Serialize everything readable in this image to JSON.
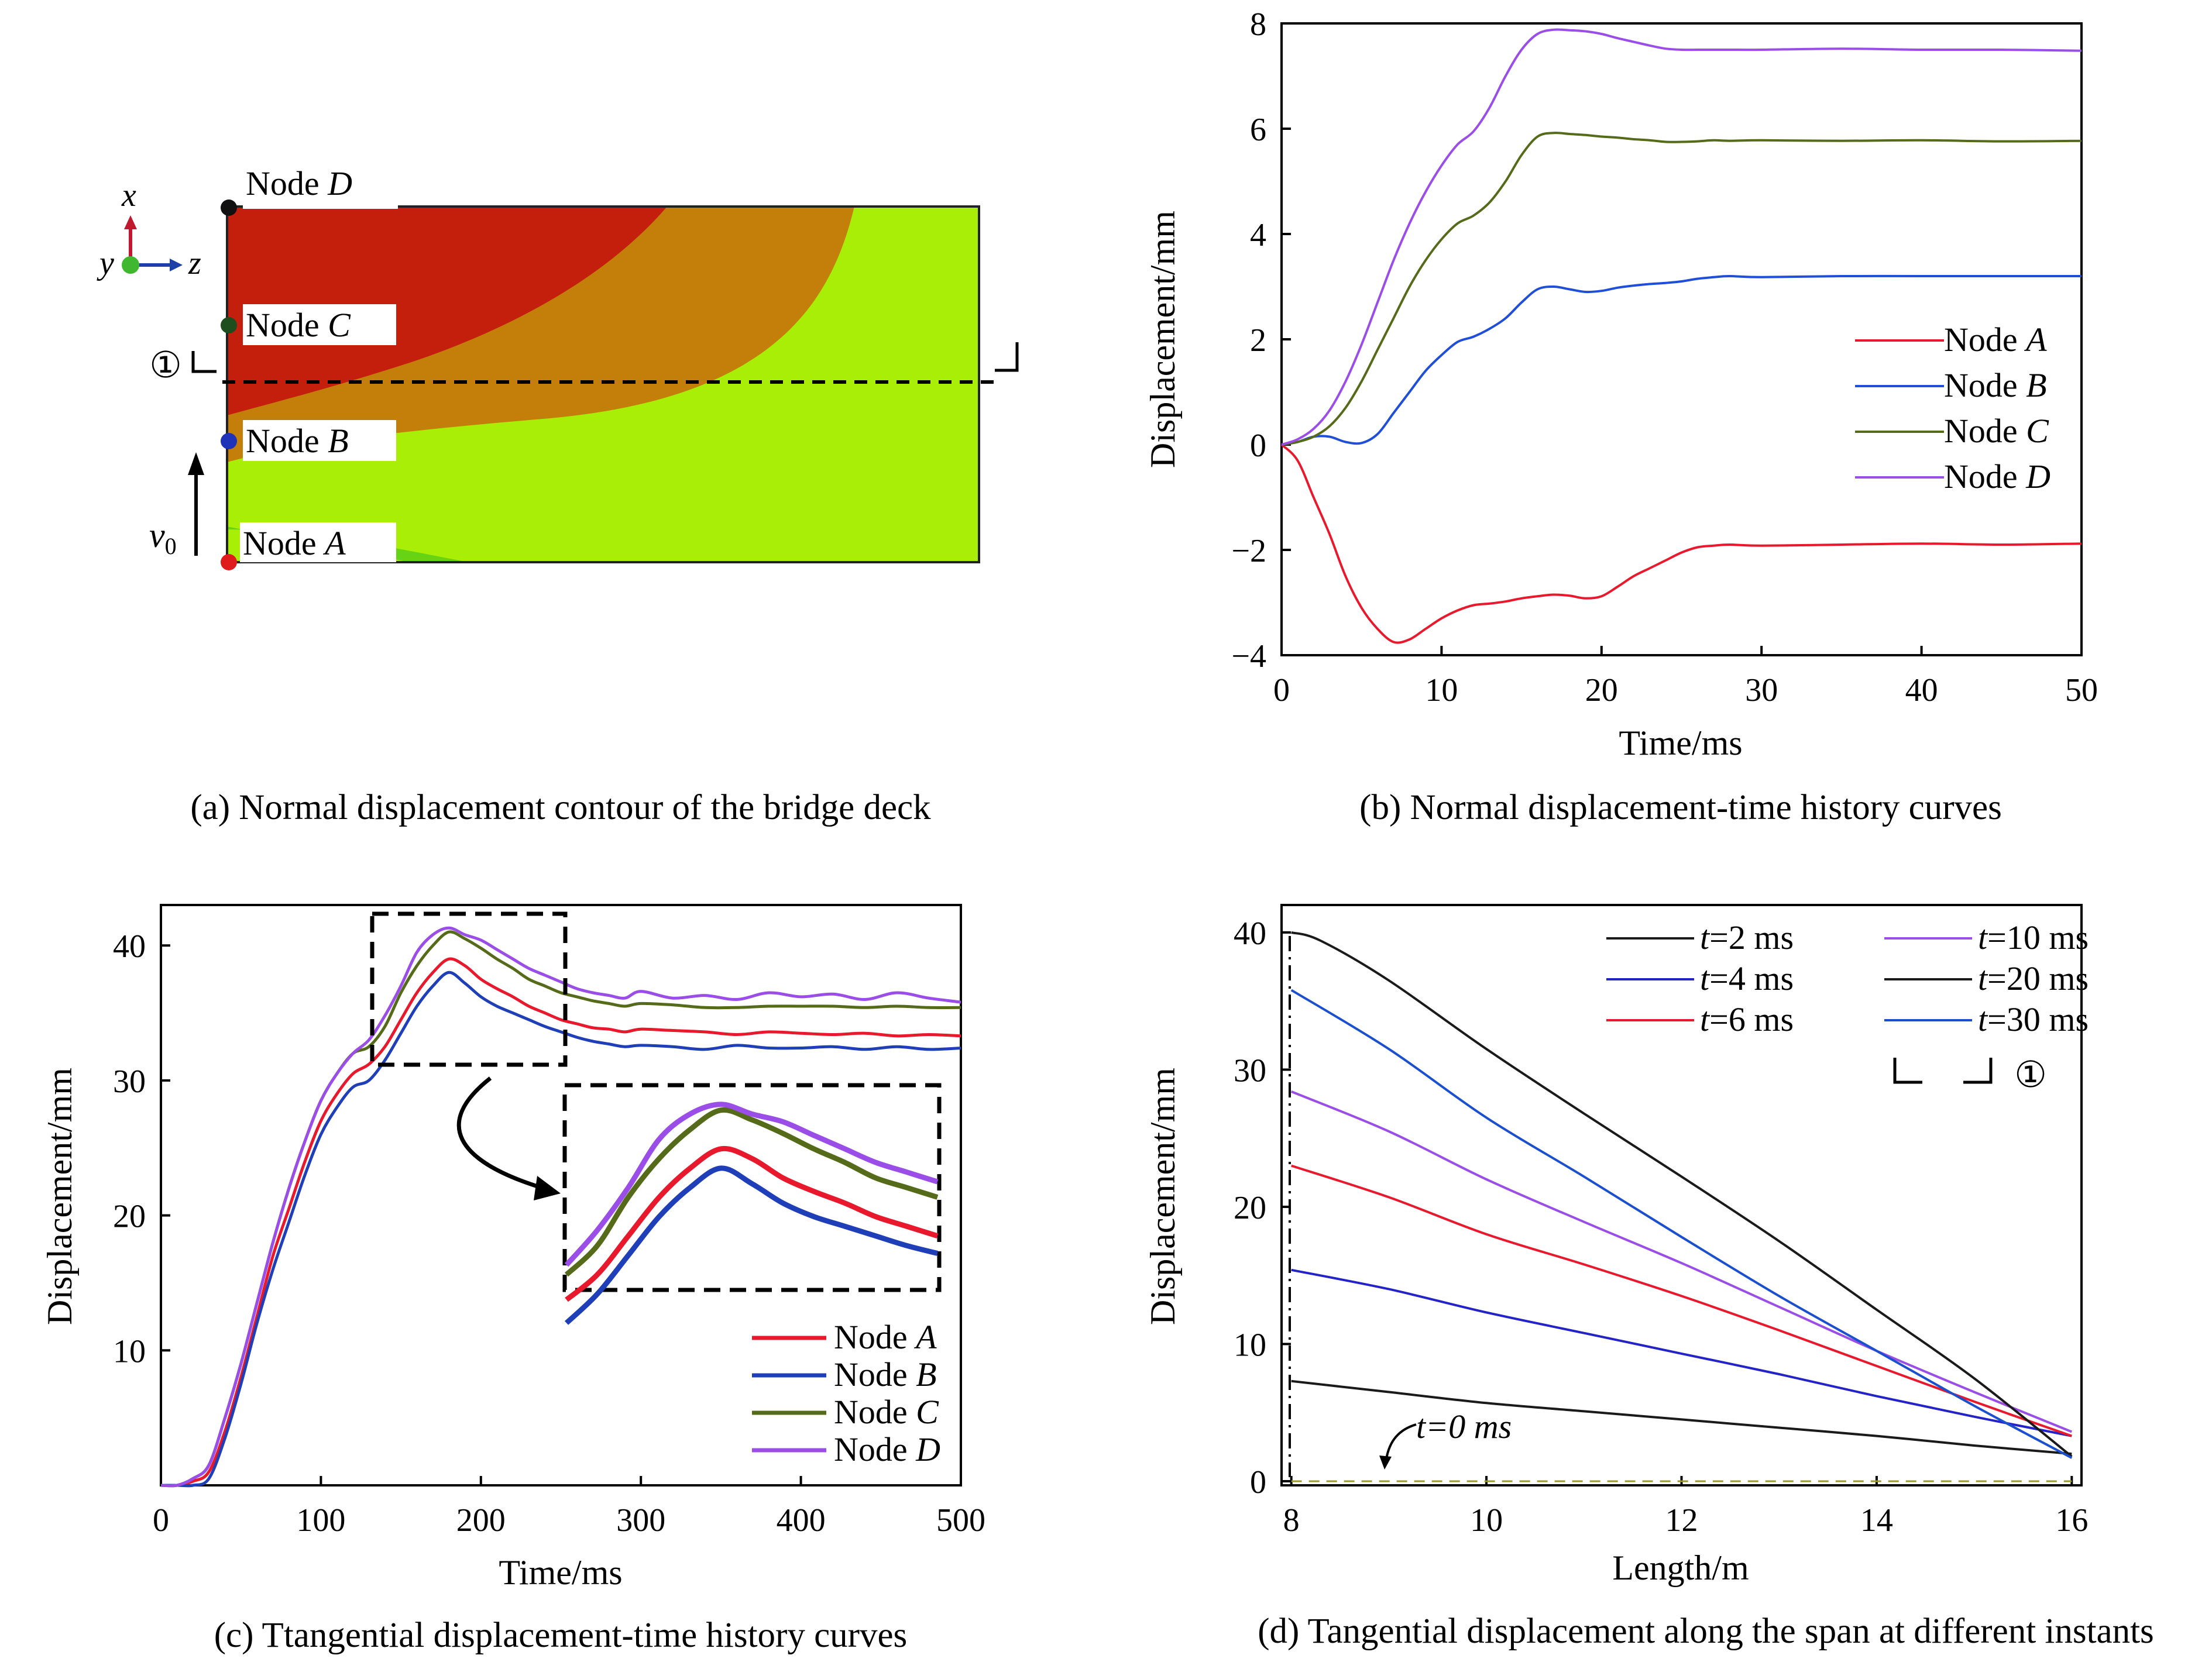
{
  "captions": {
    "a": "(a) Normal displacement contour of the bridge deck",
    "b": "(b) Normal displacement-time history curves",
    "c": "(c) Ttangential displacement-time history curves",
    "d": "(d) Tangential displacement along the span at different instants"
  },
  "contour": {
    "node_labels": [
      {
        "prefix": "Node ",
        "name": "D"
      },
      {
        "prefix": "Node ",
        "name": "C"
      },
      {
        "prefix": "Node ",
        "name": "B"
      },
      {
        "prefix": "Node ",
        "name": "A"
      }
    ],
    "node_colors": [
      "#111111",
      "#1e4d1e",
      "#1f33b8",
      "#e01b1b"
    ],
    "section_marker": "①",
    "velocity": {
      "symbol": "v",
      "subscript": "0"
    },
    "axes": {
      "x": "x",
      "y": "y",
      "z": "z"
    },
    "zone_colors": [
      "#c31f0c",
      "#c47e0a",
      "#a8ee06",
      "#66d414"
    ]
  },
  "chart_data": [
    {
      "type": "line",
      "id": "b",
      "xlabel": "Time/ms",
      "ylabel": "Displacement/mm",
      "xlim": [
        0,
        50
      ],
      "ylim": [
        -4,
        8
      ],
      "xticks": [
        "0",
        "10",
        "20",
        "30",
        "40",
        "50"
      ],
      "yticks": [
        "−4",
        "−2",
        "0",
        "2",
        "4",
        "6",
        "8"
      ],
      "legend_position": "right",
      "series": [
        {
          "name": "Node A",
          "color": "#e8192c",
          "x": [
            0,
            1,
            2,
            3,
            4,
            5,
            6,
            7,
            8,
            9,
            10,
            11,
            12,
            13,
            14,
            15,
            16,
            17,
            18,
            19,
            20,
            21,
            22,
            23,
            24,
            25,
            26,
            27,
            28,
            30,
            35,
            40,
            45,
            50
          ],
          "y": [
            0,
            -0.3,
            -1.0,
            -1.7,
            -2.5,
            -3.1,
            -3.5,
            -3.75,
            -3.7,
            -3.5,
            -3.3,
            -3.15,
            -3.05,
            -3.02,
            -2.98,
            -2.92,
            -2.88,
            -2.85,
            -2.87,
            -2.92,
            -2.88,
            -2.7,
            -2.5,
            -2.35,
            -2.2,
            -2.05,
            -1.95,
            -1.92,
            -1.9,
            -1.92,
            -1.9,
            -1.88,
            -1.9,
            -1.88
          ]
        },
        {
          "name": "Node B",
          "color": "#1f4fd8",
          "x": [
            0,
            1,
            2,
            3,
            4,
            5,
            6,
            7,
            8,
            9,
            10,
            11,
            12,
            13,
            14,
            15,
            16,
            17,
            18,
            19,
            20,
            21,
            22,
            23,
            24,
            25,
            26,
            27,
            28,
            30,
            35,
            40,
            45,
            50
          ],
          "y": [
            0,
            0.05,
            0.15,
            0.15,
            0.05,
            0.03,
            0.2,
            0.6,
            1.0,
            1.4,
            1.7,
            1.95,
            2.05,
            2.2,
            2.4,
            2.7,
            2.95,
            3.0,
            2.95,
            2.9,
            2.92,
            2.98,
            3.02,
            3.05,
            3.07,
            3.1,
            3.15,
            3.18,
            3.2,
            3.18,
            3.2,
            3.2,
            3.2,
            3.2
          ]
        },
        {
          "name": "Node C",
          "color": "#556b1a",
          "x": [
            0,
            1,
            2,
            3,
            4,
            5,
            6,
            7,
            8,
            9,
            10,
            11,
            12,
            13,
            14,
            15,
            16,
            17,
            18,
            19,
            20,
            21,
            22,
            23,
            24,
            25,
            26,
            27,
            28,
            30,
            35,
            40,
            45,
            50
          ],
          "y": [
            0,
            0.05,
            0.15,
            0.35,
            0.7,
            1.2,
            1.8,
            2.4,
            3.0,
            3.5,
            3.9,
            4.2,
            4.35,
            4.6,
            5.0,
            5.5,
            5.85,
            5.92,
            5.9,
            5.88,
            5.85,
            5.83,
            5.8,
            5.78,
            5.75,
            5.75,
            5.76,
            5.78,
            5.77,
            5.78,
            5.77,
            5.78,
            5.76,
            5.77
          ]
        },
        {
          "name": "Node D",
          "color": "#9b4de8",
          "x": [
            0,
            1,
            2,
            3,
            4,
            5,
            6,
            7,
            8,
            9,
            10,
            11,
            12,
            13,
            14,
            15,
            16,
            17,
            18,
            19,
            20,
            21,
            22,
            23,
            24,
            25,
            26,
            27,
            28,
            30,
            35,
            40,
            45,
            50
          ],
          "y": [
            0,
            0.1,
            0.3,
            0.65,
            1.2,
            1.9,
            2.7,
            3.5,
            4.2,
            4.8,
            5.3,
            5.7,
            5.95,
            6.4,
            7.0,
            7.5,
            7.8,
            7.88,
            7.87,
            7.85,
            7.8,
            7.72,
            7.65,
            7.58,
            7.52,
            7.5,
            7.5,
            7.5,
            7.5,
            7.5,
            7.52,
            7.5,
            7.5,
            7.48
          ]
        }
      ]
    },
    {
      "type": "line",
      "id": "c",
      "xlabel": "Time/ms",
      "ylabel": "Displacement/mm",
      "xlim": [
        0,
        500
      ],
      "ylim": [
        0,
        43
      ],
      "xticks": [
        "0",
        "100",
        "200",
        "300",
        "400",
        "500"
      ],
      "yticks": [
        "10",
        "20",
        "30",
        "40"
      ],
      "legend_position": "bottom-right",
      "series": [
        {
          "name": "Node A",
          "color": "#e8192c",
          "x": [
            0,
            10,
            20,
            30,
            40,
            50,
            60,
            70,
            80,
            90,
            100,
            110,
            120,
            130,
            140,
            150,
            160,
            170,
            180,
            190,
            200,
            210,
            220,
            230,
            240,
            250,
            260,
            270,
            280,
            290,
            300,
            320,
            340,
            360,
            380,
            400,
            420,
            440,
            460,
            480,
            500
          ],
          "y": [
            0,
            0,
            0.3,
            1,
            4,
            8,
            12.5,
            17,
            20.5,
            24,
            27,
            29,
            30.5,
            31.2,
            32.5,
            34.5,
            36.5,
            38,
            39,
            38.5,
            37.5,
            36.8,
            36.2,
            35.5,
            35,
            34.5,
            34.2,
            33.9,
            33.8,
            33.6,
            33.8,
            33.7,
            33.6,
            33.4,
            33.6,
            33.5,
            33.4,
            33.5,
            33.3,
            33.4,
            33.3
          ]
        },
        {
          "name": "Node B",
          "color": "#1f3fb8",
          "x": [
            0,
            10,
            20,
            30,
            40,
            50,
            60,
            70,
            80,
            90,
            100,
            110,
            120,
            130,
            140,
            150,
            160,
            170,
            180,
            190,
            200,
            210,
            220,
            230,
            240,
            250,
            260,
            270,
            280,
            290,
            300,
            320,
            340,
            360,
            380,
            400,
            420,
            440,
            460,
            480,
            500
          ],
          "y": [
            0,
            0,
            0,
            0.5,
            3.5,
            7.5,
            12,
            16,
            19.5,
            23,
            26,
            28,
            29.5,
            30,
            31.5,
            33.5,
            35.5,
            37,
            38,
            37.2,
            36.2,
            35.5,
            35,
            34.5,
            34,
            33.6,
            33.2,
            32.9,
            32.7,
            32.5,
            32.6,
            32.5,
            32.3,
            32.6,
            32.4,
            32.4,
            32.5,
            32.3,
            32.5,
            32.3,
            32.4
          ]
        },
        {
          "name": "Node C",
          "color": "#556b1a",
          "x": [
            0,
            10,
            20,
            30,
            40,
            50,
            60,
            70,
            80,
            90,
            100,
            110,
            120,
            130,
            140,
            150,
            160,
            170,
            180,
            190,
            200,
            210,
            220,
            230,
            240,
            250,
            260,
            270,
            280,
            290,
            300,
            320,
            340,
            360,
            380,
            400,
            420,
            440,
            460,
            480,
            500
          ],
          "y": [
            0,
            0,
            0.5,
            1.5,
            5,
            9,
            13.5,
            18,
            22,
            25.5,
            28.5,
            30.5,
            32,
            32.5,
            34,
            36.5,
            38.5,
            40,
            41,
            40.5,
            39.8,
            39,
            38.3,
            37.5,
            37,
            36.5,
            36.2,
            35.9,
            35.7,
            35.5,
            35.7,
            35.6,
            35.4,
            35.4,
            35.5,
            35.5,
            35.5,
            35.4,
            35.5,
            35.4,
            35.4
          ]
        },
        {
          "name": "Node D",
          "color": "#9b4de8",
          "x": [
            0,
            10,
            20,
            30,
            40,
            50,
            60,
            70,
            80,
            90,
            100,
            110,
            120,
            130,
            140,
            150,
            160,
            170,
            180,
            190,
            200,
            210,
            220,
            230,
            240,
            250,
            260,
            270,
            280,
            290,
            300,
            320,
            340,
            360,
            380,
            400,
            420,
            440,
            460,
            480,
            500
          ],
          "y": [
            0,
            0,
            0.5,
            1.5,
            5,
            9,
            13.5,
            18,
            22,
            25.5,
            28.5,
            30.5,
            32,
            33,
            34.8,
            37,
            39.5,
            40.8,
            41.3,
            40.8,
            40.4,
            39.7,
            39,
            38.3,
            37.8,
            37.3,
            36.8,
            36.5,
            36.3,
            36.1,
            36.6,
            36.1,
            36.3,
            36.0,
            36.5,
            36.2,
            36.4,
            36.0,
            36.5,
            36.1,
            35.8
          ]
        }
      ]
    },
    {
      "type": "line",
      "id": "d",
      "xlabel": "Length/m",
      "ylabel": "Displacement/mm",
      "xlim": [
        7.9,
        16.1
      ],
      "ylim": [
        -0.3,
        42
      ],
      "xticks": [
        "8",
        "10",
        "12",
        "14",
        "16"
      ],
      "yticks": [
        "0",
        "10",
        "20",
        "30",
        "40"
      ],
      "legend_position": "top-right",
      "annotation": "t=0 ms",
      "section_marker": "①",
      "series": [
        {
          "name": "t=2 ms",
          "color": "#1a1a1a",
          "x": [
            8,
            9,
            10,
            11,
            12,
            13,
            14,
            15,
            16
          ],
          "y": [
            7.3,
            6.5,
            5.7,
            5.1,
            4.5,
            3.9,
            3.3,
            2.6,
            2.0
          ]
        },
        {
          "name": "t=4 ms",
          "color": "#2323c8",
          "x": [
            8,
            9,
            10,
            11,
            12,
            13,
            14,
            15,
            16
          ],
          "y": [
            15.4,
            14,
            12.3,
            10.8,
            9.3,
            7.8,
            6.2,
            4.7,
            3.3
          ]
        },
        {
          "name": "t=6 ms",
          "color": "#e8192c",
          "x": [
            8,
            9,
            10,
            11,
            12,
            13,
            14,
            15,
            16
          ],
          "y": [
            23,
            20.7,
            18,
            15.8,
            13.5,
            11,
            8.4,
            5.8,
            3.3
          ]
        },
        {
          "name": "t=10 ms",
          "color": "#9b4de8",
          "x": [
            8,
            9,
            10,
            11,
            12,
            13,
            14,
            15,
            16
          ],
          "y": [
            28.4,
            25.5,
            22,
            18.9,
            15.9,
            12.7,
            9.5,
            6.5,
            3.6
          ]
        },
        {
          "name": "t=20 ms",
          "color": "#1a1a1a",
          "x": [
            8,
            8.3,
            9,
            10,
            11,
            12,
            13,
            14,
            15,
            16
          ],
          "y": [
            40,
            39.4,
            36.5,
            31.5,
            26.8,
            22.2,
            17.5,
            12.5,
            7.5,
            1.8
          ]
        },
        {
          "name": "t=30 ms",
          "color": "#1a50d0",
          "x": [
            8,
            9,
            10,
            11,
            12,
            13,
            14,
            15,
            16
          ],
          "y": [
            35.8,
            31.5,
            26.5,
            22.2,
            17.8,
            13.5,
            9.5,
            5.5,
            1.7
          ]
        },
        {
          "name": "t=0 ms",
          "color": "#9a9a2a",
          "dashed": true,
          "x": [
            8,
            16
          ],
          "y": [
            0,
            0
          ]
        }
      ]
    }
  ]
}
